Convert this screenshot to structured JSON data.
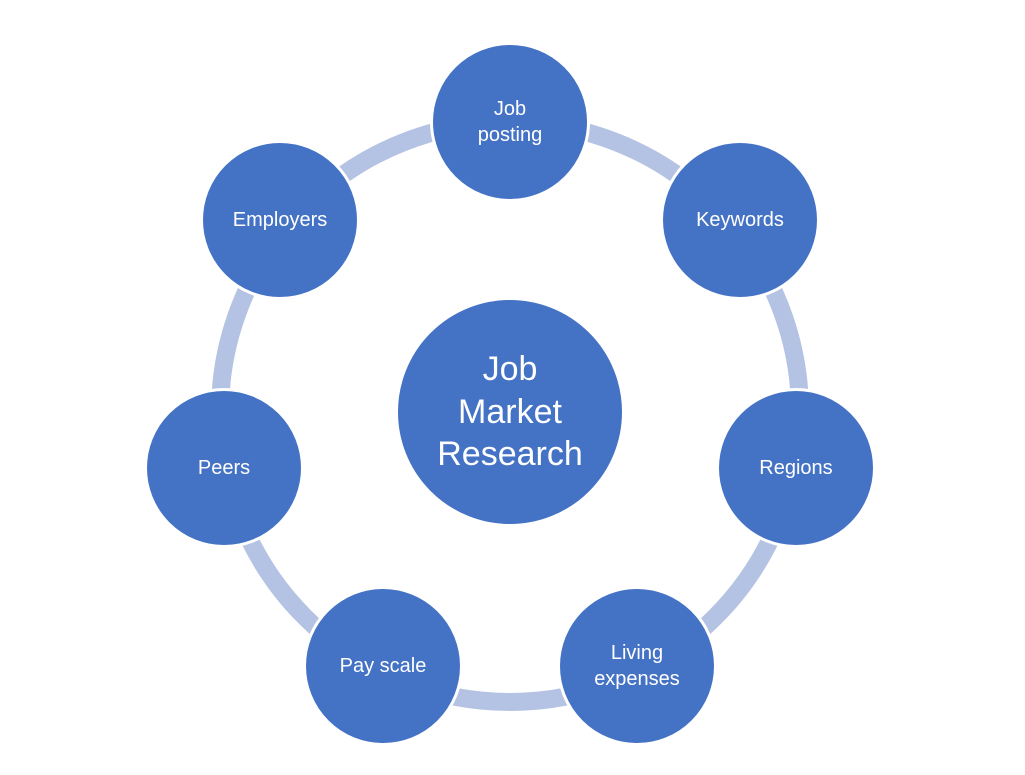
{
  "diagram": {
    "type": "cycle",
    "colors": {
      "node_fill": "#4472C4",
      "node_border": "#FFFFFF",
      "ring": "#B4C3E3",
      "text": "#FFFFFF",
      "background": "#FFFFFF"
    },
    "center": {
      "label": "Job\nMarket\nResearch"
    },
    "nodes": [
      {
        "id": "job-posting",
        "label": "Job\nposting"
      },
      {
        "id": "keywords",
        "label": "Keywords"
      },
      {
        "id": "regions",
        "label": "Regions"
      },
      {
        "id": "living-expenses",
        "label": "Living\nexpenses"
      },
      {
        "id": "pay-scale",
        "label": "Pay scale"
      },
      {
        "id": "peers",
        "label": "Peers"
      },
      {
        "id": "employers",
        "label": "Employers"
      }
    ]
  }
}
